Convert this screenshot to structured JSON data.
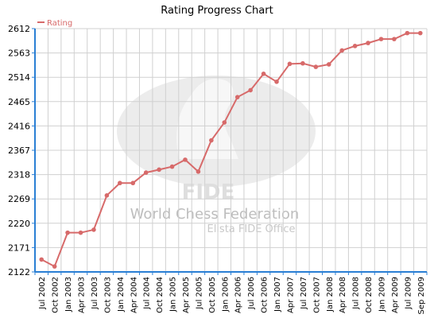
{
  "chart_data": {
    "type": "line",
    "title": "Rating Progress Chart",
    "legend": {
      "placement": "top-left",
      "entries": [
        "Rating"
      ]
    },
    "xlabel": "",
    "ylabel": "",
    "ylim": [
      2122,
      2612
    ],
    "y_ticks": [
      "2122",
      "2171",
      "2220",
      "2269",
      "2318",
      "2367",
      "2416",
      "2465",
      "2514",
      "2563",
      "2612"
    ],
    "grid": true,
    "categories": [
      "Jul 2002",
      "Oct 2002",
      "Jan 2003",
      "Apr 2003",
      "Jul 2003",
      "Oct 2003",
      "Jan 2004",
      "Apr 2004",
      "Jul 2004",
      "Oct 2004",
      "Jan 2005",
      "Apr 2005",
      "Jul 2005",
      "Oct 2005",
      "Jan 2006",
      "Apr 2006",
      "Jul 2006",
      "Oct 2006",
      "Jan 2007",
      "Apr 2007",
      "Jul 2007",
      "Oct 2007",
      "Jan 2008",
      "Apr 2008",
      "Jul 2008",
      "Oct 2008",
      "Jan 2009",
      "Apr 2009",
      "Jul 2009",
      "Sep 2009"
    ],
    "series": [
      {
        "name": "Rating",
        "color": "#d76a6a",
        "values": [
          2147,
          2133,
          2201,
          2201,
          2207,
          2276,
          2301,
          2301,
          2322,
          2328,
          2334,
          2348,
          2324,
          2387,
          2423,
          2474,
          2488,
          2521,
          2505,
          2541,
          2542,
          2535,
          2540,
          2568,
          2577,
          2583,
          2591,
          2591,
          2603,
          2603
        ]
      }
    ]
  },
  "watermark": {
    "title": "World Chess Federation",
    "subtitle": "Elista FIDE Office",
    "logo_text": "FIDE"
  },
  "colors": {
    "line": "#d76a6a",
    "grid": "#d0d0d0",
    "axis": "#2a7fd4",
    "watermark": "#e4e4e4"
  }
}
